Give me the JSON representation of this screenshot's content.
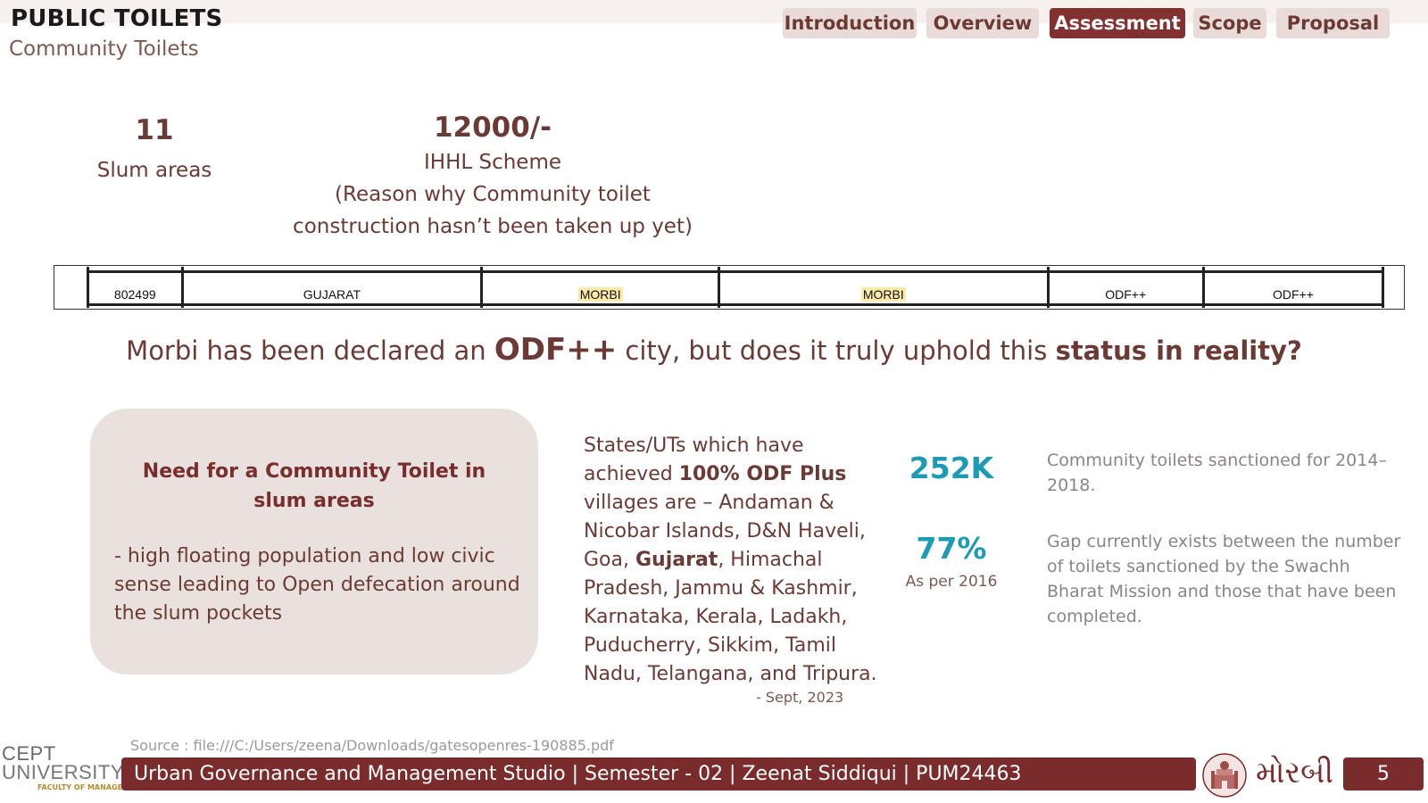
{
  "header": {
    "title": "PUBLIC TOILETS",
    "subtitle": "Community Toilets",
    "nav": [
      "Introduction",
      "Overview",
      "Assessment",
      "Scope",
      "Proposal"
    ],
    "active_nav": "Assessment"
  },
  "stats": {
    "slum_count": "11",
    "slum_label": "Slum areas",
    "ihhl_amount": "12000/-",
    "ihhl_lines": [
      "IHHL Scheme",
      "(Reason why Community toilet",
      "construction hasn’t been taken up yet)"
    ]
  },
  "table_row": [
    "802499",
    "GUJARAT",
    "MORBI",
    "MORBI",
    "ODF++",
    "ODF++"
  ],
  "question": {
    "part1": "Morbi has been declared an ",
    "emph": "ODF++",
    "part2": " city, but does it truly uphold this ",
    "bold": "status in reality?"
  },
  "need_box": {
    "title": "Need for a Community Toilet in slum areas",
    "body": "- high floating population and low civic sense leading to Open defecation around the slum pockets"
  },
  "states": {
    "t1": "States/UTs which have achieved ",
    "b1": "100% ODF Plus",
    "t2": " villages are – Andaman & Nicobar Islands, D&N Haveli, Goa, ",
    "b2": "Gujarat",
    "t3": ", Himachal Pradesh, Jammu & Kashmir, Karnataka, Kerala, Ladakh, Puducherry, Sikkim, Tamil Nadu, Telangana, and Tripura.",
    "date": "- Sept, 2023"
  },
  "kpis": [
    {
      "value": "252K",
      "sub": "",
      "desc": "Community toilets sanctioned for 2014–2018."
    },
    {
      "value": "77%",
      "sub": "As per 2016",
      "desc": "Gap currently exists between the number of toilets sanctioned by the Swachh Bharat Mission and those that have been completed."
    }
  ],
  "source": "Source : file:///C:/Users/zeena/Downloads/gatesopenres-190885.pdf",
  "footer": {
    "logo_line1": "CEPT",
    "logo_line2": "UNIVERSITY",
    "logo_line3": "FACULTY OF MANAGEMENT",
    "bar_text": "Urban Governance and Management Studio | Semester - 02 | Zeenat Siddiqui | PUM24463",
    "city_script": "મોરબી",
    "page_number": "5"
  },
  "colors": {
    "accent": "#7a2b2b",
    "kpi": "#1b9bb4",
    "nav_bg": "#e9dcd8",
    "box_bg": "#e9e1de"
  }
}
